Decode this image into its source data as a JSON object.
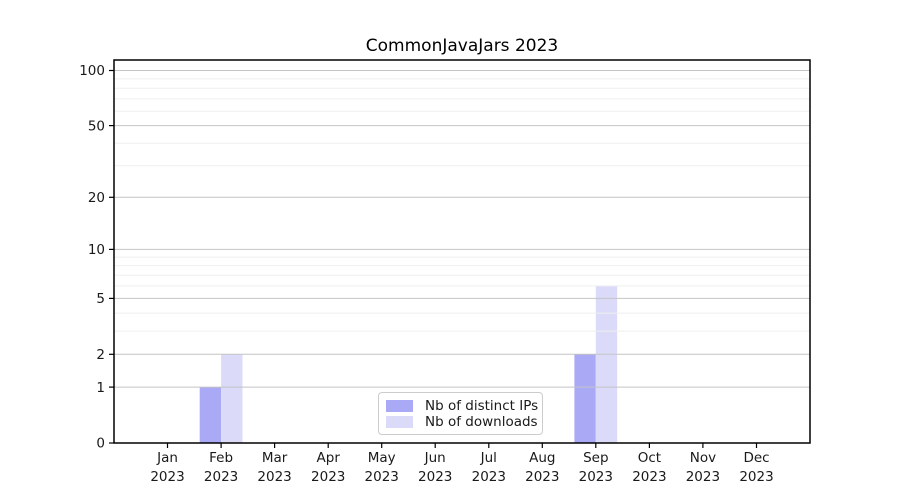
{
  "chart_data": {
    "type": "bar",
    "title": "CommonJavaJars 2023",
    "categories": [
      "Jan",
      "Feb",
      "Mar",
      "Apr",
      "May",
      "Jun",
      "Jul",
      "Aug",
      "Sep",
      "Oct",
      "Nov",
      "Dec"
    ],
    "x_year_label": "2023",
    "series": [
      {
        "name": "Nb of distinct IPs",
        "color": "#a9a9f6",
        "values": [
          0,
          1,
          0,
          0,
          0,
          0,
          0,
          0,
          2,
          0,
          0,
          0
        ]
      },
      {
        "name": "Nb of downloads",
        "color": "#dbdbf9",
        "values": [
          0,
          2,
          0,
          0,
          0,
          0,
          0,
          0,
          6,
          0,
          0,
          0
        ]
      }
    ],
    "yscale": "log1p",
    "y_major_ticks": [
      0,
      1,
      2,
      5,
      10,
      20,
      50,
      100
    ],
    "y_minor_gridlines": [
      3,
      4,
      6,
      7,
      8,
      9,
      30,
      40,
      60,
      70,
      80,
      90
    ],
    "ylim": [
      0,
      114
    ],
    "grid": true,
    "legend_position": "lower center"
  },
  "colors": {
    "background": "#ffffff",
    "spine": "#000000",
    "major_grid": "#c4c4c4",
    "minor_grid": "#efefef",
    "tick": "#000000",
    "text": "#1a1a1a",
    "legend_border": "#cccccc"
  }
}
